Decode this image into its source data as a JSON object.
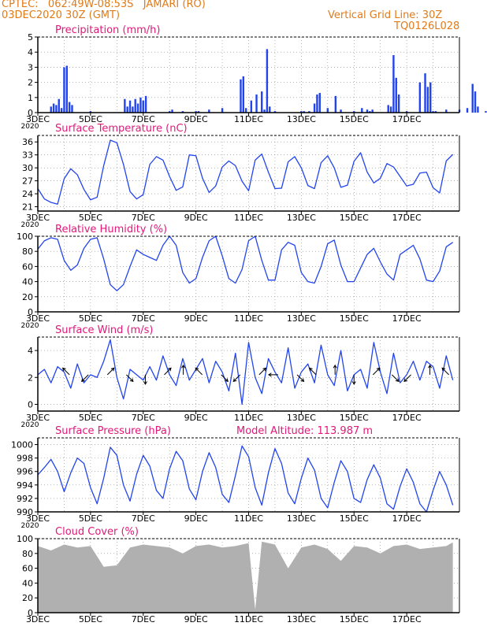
{
  "header": {
    "line1_left": "CPTEC:   062:49W-08:53S   JAMARI (RO)",
    "line2_left": "03DEC2020 30Z (GMT)",
    "line1_right": "Vertical Grid Line: 30Z",
    "line2_right": "TQ0126L028"
  },
  "colors": {
    "header": "#e07b1a",
    "panel_title": "#e0197a",
    "series": "#2244ee",
    "cloud": "#b0b0b0",
    "grid": "#888888"
  },
  "x_axis": {
    "ticks": [
      "3DEC",
      "5DEC",
      "7DEC",
      "9DEC",
      "11DEC",
      "13DEC",
      "15DEC",
      "17DEC"
    ],
    "first_tick_sublabel": "2020"
  },
  "chart_data": [
    {
      "type": "bar",
      "title": "Precipitation (mm/h)",
      "ylim": [
        0,
        5
      ],
      "yticks": [
        "0",
        "1",
        "2",
        "3",
        "4",
        "5"
      ],
      "x_unit": "days since 3DEC 00Z",
      "x": [
        0.5,
        0.6,
        0.7,
        0.8,
        0.9,
        1.0,
        1.1,
        1.2,
        1.3,
        2.0,
        3.3,
        3.4,
        3.5,
        3.6,
        3.7,
        3.8,
        3.9,
        4.0,
        4.1,
        5.0,
        5.1,
        5.5,
        6.0,
        6.1,
        6.5,
        7.0,
        7.7,
        7.8,
        7.9,
        8.1,
        8.3,
        8.5,
        8.6,
        8.7,
        8.8,
        9.0,
        10.0,
        10.1,
        10.3,
        10.5,
        10.6,
        10.7,
        11.0,
        11.3,
        11.5,
        12.0,
        12.3,
        12.5,
        12.6,
        12.7,
        13.3,
        13.4,
        13.5,
        13.6,
        13.7,
        14.0,
        14.5,
        14.7,
        14.8,
        14.9,
        15.0,
        15.1,
        15.5,
        16.0,
        16.3,
        16.5,
        16.6,
        16.7,
        17.0,
        17.3,
        17.5
      ],
      "values": [
        0.4,
        0.6,
        0.5,
        0.9,
        0.3,
        3.0,
        3.1,
        0.7,
        0.5,
        0.1,
        0.9,
        0.4,
        0.8,
        0.4,
        0.9,
        0.6,
        1.0,
        0.8,
        1.1,
        0.1,
        0.2,
        0.1,
        0.1,
        0.1,
        0.2,
        0.3,
        2.2,
        2.4,
        0.3,
        0.8,
        1.2,
        1.4,
        0.2,
        4.2,
        0.4,
        0.1,
        0.1,
        0.1,
        0.1,
        0.6,
        1.2,
        1.3,
        0.3,
        1.1,
        0.2,
        0.1,
        0.3,
        0.2,
        0.1,
        0.2,
        0.5,
        0.4,
        3.8,
        2.3,
        1.2,
        0.1,
        2.0,
        2.6,
        1.7,
        2.0,
        0.1,
        0.1,
        0.2,
        0.2,
        0.3,
        1.9,
        1.4,
        0.4,
        0.1,
        0.2,
        0.4
      ]
    },
    {
      "type": "line",
      "title": "Surface Temperature (nC)",
      "ylim": [
        20,
        37.5
      ],
      "yticks": [
        "21",
        "24",
        "27",
        "30",
        "33",
        "36"
      ],
      "x_unit": "days since 3DEC 00Z",
      "x": [
        0,
        0.25,
        0.5,
        0.75,
        1.0,
        1.25,
        1.5,
        1.75,
        2.0,
        2.25,
        2.5,
        2.75,
        3.0,
        3.25,
        3.5,
        3.75,
        4.0,
        4.25,
        4.5,
        4.75,
        5.0,
        5.25,
        5.5,
        5.75,
        6.0,
        6.25,
        6.5,
        6.75,
        7.0,
        7.25,
        7.5,
        7.75,
        8.0,
        8.25,
        8.5,
        8.75,
        9.0,
        9.25,
        9.5,
        9.75,
        10.0,
        10.25,
        10.5,
        10.75,
        11.0,
        11.25,
        11.5,
        11.75,
        12.0,
        12.25,
        12.5,
        12.75,
        13.0,
        13.25,
        13.5,
        13.75,
        14.0,
        14.25,
        14.5,
        14.75,
        15.0,
        15.25,
        15.5,
        15.75
      ],
      "values": [
        25.2,
        22.8,
        22.0,
        21.6,
        27.5,
        29.8,
        28.4,
        25.0,
        22.6,
        23.2,
        30.5,
        36.4,
        35.8,
        30.8,
        24.5,
        22.8,
        23.8,
        30.8,
        32.6,
        31.8,
        28.0,
        24.8,
        25.6,
        33.0,
        32.8,
        27.6,
        24.3,
        25.8,
        30.2,
        31.6,
        30.5,
        26.9,
        24.7,
        31.8,
        33.2,
        29.0,
        25.2,
        25.3,
        31.4,
        32.6,
        30.0,
        25.9,
        25.2,
        31.2,
        32.8,
        30.0,
        25.5,
        26.0,
        31.5,
        33.5,
        29.0,
        26.5,
        27.6,
        31.0,
        30.2,
        28.0,
        25.8,
        26.2,
        28.8,
        29.0,
        25.4,
        24.2,
        31.6,
        33.1
      ]
    },
    {
      "type": "line",
      "title": "Relative Humidity (%)",
      "ylim": [
        0,
        100
      ],
      "yticks": [
        "0",
        "20",
        "40",
        "60",
        "80",
        "100"
      ],
      "x_unit": "days since 3DEC 00Z",
      "x": [
        0,
        0.25,
        0.5,
        0.75,
        1.0,
        1.25,
        1.5,
        1.75,
        2.0,
        2.25,
        2.5,
        2.75,
        3.0,
        3.25,
        3.5,
        3.75,
        4.0,
        4.25,
        4.5,
        4.75,
        5.0,
        5.25,
        5.5,
        5.75,
        6.0,
        6.25,
        6.5,
        6.75,
        7.0,
        7.25,
        7.5,
        7.75,
        8.0,
        8.25,
        8.5,
        8.75,
        9.0,
        9.25,
        9.5,
        9.75,
        10.0,
        10.25,
        10.5,
        10.75,
        11.0,
        11.25,
        11.5,
        11.75,
        12.0,
        12.25,
        12.5,
        12.75,
        13.0,
        13.25,
        13.5,
        13.75,
        14.0,
        14.25,
        14.5,
        14.75,
        15.0,
        15.25,
        15.5,
        15.75
      ],
      "values": [
        83,
        94,
        98,
        96,
        68,
        55,
        62,
        84,
        96,
        98,
        70,
        36,
        28,
        36,
        60,
        82,
        76,
        72,
        68,
        88,
        100,
        88,
        52,
        38,
        44,
        72,
        94,
        100,
        74,
        44,
        38,
        56,
        94,
        100,
        68,
        42,
        42,
        82,
        92,
        88,
        52,
        40,
        38,
        60,
        90,
        95,
        62,
        40,
        40,
        58,
        76,
        84,
        66,
        50,
        42,
        76,
        82,
        88,
        70,
        42,
        40,
        54,
        86,
        92
      ]
    },
    {
      "type": "line",
      "title": "Surface Wind (m/s)",
      "ylim": [
        -0.5,
        5.0
      ],
      "yticks": [
        "0",
        "2",
        "4"
      ],
      "x_unit": "days since 3DEC 00Z",
      "x": [
        0,
        0.25,
        0.5,
        0.75,
        1.0,
        1.25,
        1.5,
        1.75,
        2.0,
        2.25,
        2.5,
        2.75,
        3.0,
        3.25,
        3.5,
        3.75,
        4.0,
        4.25,
        4.5,
        4.75,
        5.0,
        5.25,
        5.5,
        5.75,
        6.0,
        6.25,
        6.5,
        6.75,
        7.0,
        7.25,
        7.5,
        7.75,
        8.0,
        8.25,
        8.5,
        8.75,
        9.0,
        9.25,
        9.5,
        9.75,
        10.0,
        10.25,
        10.5,
        10.75,
        11.0,
        11.25,
        11.5,
        11.75,
        12.0,
        12.25,
        12.5,
        12.75,
        13.0,
        13.25,
        13.5,
        13.75,
        14.0,
        14.25,
        14.5,
        14.75,
        15.0,
        15.25,
        15.5,
        15.75
      ],
      "values": [
        2.2,
        2.6,
        1.6,
        2.8,
        2.4,
        1.2,
        3.0,
        1.6,
        2.2,
        2.0,
        3.2,
        4.8,
        2.0,
        0.4,
        2.6,
        2.2,
        1.8,
        2.8,
        1.8,
        3.6,
        2.2,
        1.4,
        3.4,
        1.8,
        2.6,
        3.4,
        1.6,
        3.2,
        2.4,
        1.0,
        3.8,
        0.0,
        4.6,
        2.0,
        0.8,
        3.4,
        2.4,
        1.6,
        4.2,
        1.2,
        2.4,
        3.0,
        1.6,
        4.4,
        2.2,
        1.4,
        4.0,
        1.0,
        2.2,
        2.6,
        1.2,
        4.6,
        2.4,
        0.8,
        3.8,
        1.6,
        2.2,
        3.2,
        1.8,
        3.2,
        2.8,
        1.2,
        3.6,
        1.8
      ]
    },
    {
      "type": "line",
      "title": "Surface Pressure (hPa)",
      "annotation": "Model Altitude: 113.987 m",
      "ylim": [
        990,
        1001
      ],
      "yticks": [
        "990",
        "992",
        "994",
        "996",
        "998",
        "1000"
      ],
      "x_unit": "days since 3DEC 00Z",
      "x": [
        0,
        0.25,
        0.5,
        0.75,
        1.0,
        1.25,
        1.5,
        1.75,
        2.0,
        2.25,
        2.5,
        2.75,
        3.0,
        3.25,
        3.5,
        3.75,
        4.0,
        4.25,
        4.5,
        4.75,
        5.0,
        5.25,
        5.5,
        5.75,
        6.0,
        6.25,
        6.5,
        6.75,
        7.0,
        7.25,
        7.5,
        7.75,
        8.0,
        8.25,
        8.5,
        8.75,
        9.0,
        9.25,
        9.5,
        9.75,
        10.0,
        10.25,
        10.5,
        10.75,
        11.0,
        11.25,
        11.5,
        11.75,
        12.0,
        12.25,
        12.5,
        12.75,
        13.0,
        13.25,
        13.5,
        13.75,
        14.0,
        14.25,
        14.5,
        14.75,
        15.0,
        15.25,
        15.5,
        15.75
      ],
      "values": [
        995.5,
        996.6,
        997.8,
        996.0,
        993.0,
        995.8,
        998.0,
        997.2,
        993.6,
        991.2,
        995.0,
        999.6,
        998.4,
        994.0,
        991.6,
        995.6,
        998.4,
        996.8,
        993.2,
        992.0,
        996.4,
        999.0,
        997.6,
        993.4,
        991.8,
        996.0,
        998.8,
        996.6,
        992.6,
        991.4,
        995.4,
        999.8,
        998.2,
        993.6,
        991.0,
        995.8,
        999.4,
        997.2,
        992.8,
        991.2,
        995.0,
        998.0,
        996.2,
        992.0,
        990.6,
        994.4,
        997.6,
        996.0,
        992.0,
        991.4,
        994.8,
        997.0,
        995.0,
        991.2,
        990.4,
        993.8,
        996.4,
        994.4,
        991.2,
        990.0,
        993.2,
        996.0,
        994.0,
        991.0
      ]
    },
    {
      "type": "area",
      "title": "Cloud Cover (%)",
      "ylim": [
        0,
        100
      ],
      "yticks": [
        "0",
        "20",
        "40",
        "60",
        "80",
        "100"
      ],
      "x_unit": "days since 3DEC 00Z",
      "x": [
        0,
        0.5,
        1.0,
        1.5,
        2.0,
        2.5,
        3.0,
        3.5,
        4.0,
        4.5,
        5.0,
        5.5,
        6.0,
        6.5,
        7.0,
        7.5,
        8.0,
        8.25,
        8.5,
        9.0,
        9.5,
        10.0,
        10.5,
        11.0,
        11.5,
        12.0,
        12.5,
        13.0,
        13.5,
        14.0,
        14.5,
        15.0,
        15.5,
        15.75
      ],
      "values": [
        90,
        84,
        92,
        88,
        90,
        62,
        64,
        88,
        92,
        90,
        88,
        80,
        90,
        92,
        88,
        90,
        94,
        4,
        96,
        92,
        60,
        88,
        92,
        86,
        70,
        90,
        88,
        80,
        90,
        92,
        86,
        88,
        90,
        95
      ]
    }
  ]
}
